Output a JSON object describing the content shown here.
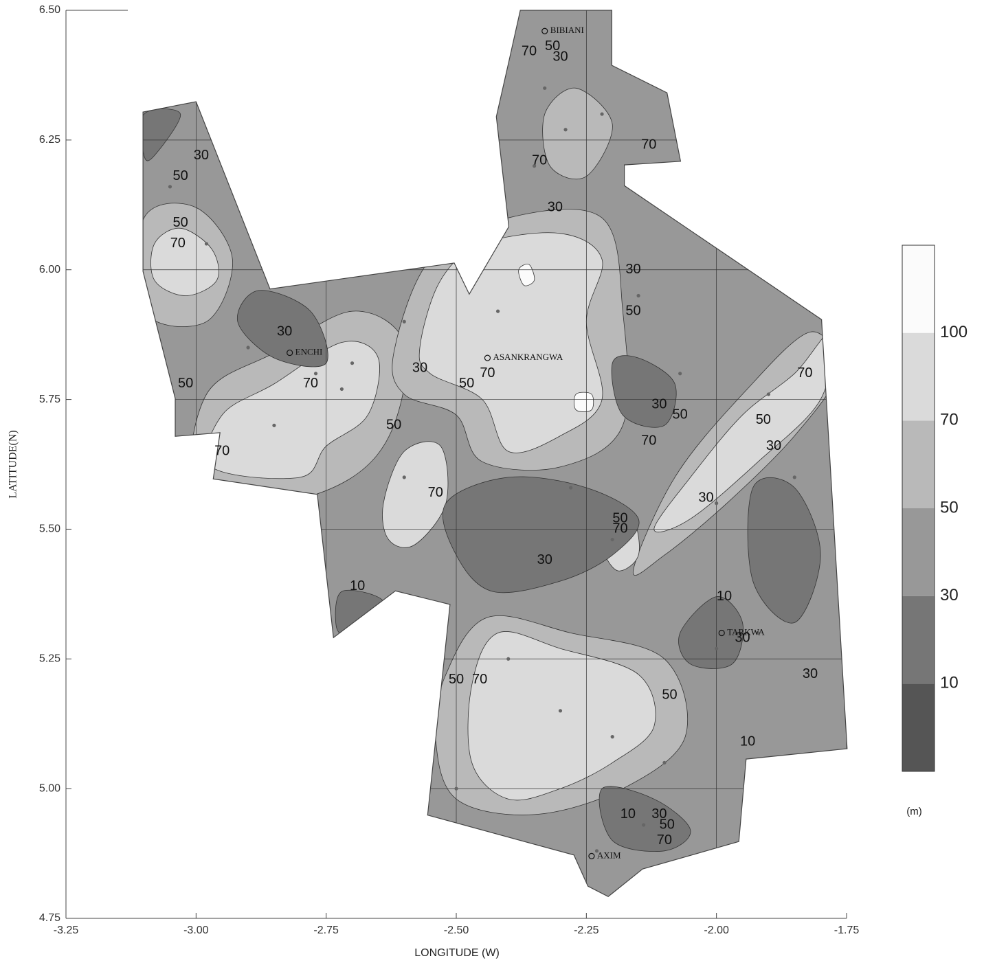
{
  "chart_data": {
    "type": "contour",
    "xlabel": "LONGITUDE (W)",
    "ylabel": "LATITUDE(N)",
    "xlim": [
      -3.25,
      -1.75
    ],
    "ylim": [
      4.75,
      6.5
    ],
    "xticks": [
      -3.25,
      {
        "value": -3,
        "label": "-3.00"
      },
      -2.75,
      {
        "value": -2.5,
        "label": "-2.50"
      },
      -2.25,
      {
        "value": -2,
        "label": "-2.00"
      },
      -1.75
    ],
    "yticks": [
      4.75,
      {
        "value": 5,
        "label": "5.00"
      },
      5.25,
      {
        "value": 5.5,
        "label": "5.50"
      },
      5.75,
      {
        "value": 6,
        "label": "6.00"
      },
      6.25,
      {
        "value": 6.5,
        "label": "6.50"
      }
    ],
    "grid": true,
    "colorbar": {
      "levels": [
        10,
        30,
        50,
        70,
        100
      ],
      "colors": [
        "#555555",
        "#767676",
        "#989898",
        "#b9b9b9",
        "#dadada",
        "#fbfbfb"
      ],
      "label": "(m)"
    },
    "base_level": 30,
    "boundary": [
      [
        -3.102,
        6.304
      ],
      [
        -3.0,
        6.324
      ],
      [
        -2.858,
        5.963
      ],
      [
        -2.504,
        6.013
      ],
      [
        -2.475,
        5.953
      ],
      [
        -2.399,
        6.083
      ],
      [
        -2.423,
        6.295
      ],
      [
        -2.399,
        6.401
      ],
      [
        -2.377,
        6.5
      ],
      [
        -2.201,
        6.5
      ],
      [
        -2.201,
        6.394
      ],
      [
        -2.095,
        6.341
      ],
      [
        -2.069,
        6.209
      ],
      [
        -2.177,
        6.202
      ],
      [
        -2.177,
        6.162
      ],
      [
        -1.798,
        5.904
      ],
      [
        -1.749,
        5.077
      ],
      [
        -1.943,
        5.057
      ],
      [
        -1.957,
        4.898
      ],
      [
        -2.142,
        4.845
      ],
      [
        -2.208,
        4.792
      ],
      [
        -2.247,
        4.812
      ],
      [
        -2.274,
        4.872
      ],
      [
        -2.555,
        4.949
      ],
      [
        -2.512,
        5.355
      ],
      [
        -2.617,
        5.381
      ],
      [
        -2.736,
        5.291
      ],
      [
        -2.767,
        5.567
      ],
      [
        -2.967,
        5.597
      ],
      [
        -2.954,
        5.686
      ],
      [
        -3.04,
        5.679
      ],
      [
        -3.04,
        5.752
      ],
      [
        -3.102,
        5.997
      ]
    ],
    "regions": [
      {
        "level": 50,
        "points": [
          [
            -3.0,
            5.58
          ],
          [
            -2.98,
            5.76
          ],
          [
            -2.85,
            5.84
          ],
          [
            -2.7,
            5.92
          ],
          [
            -2.6,
            5.86
          ],
          [
            -2.62,
            5.7
          ],
          [
            -2.7,
            5.6
          ],
          [
            -2.85,
            5.55
          ]
        ]
      },
      {
        "level": 50,
        "points": [
          [
            -2.62,
            5.84
          ],
          [
            -2.55,
            6.02
          ],
          [
            -2.4,
            6.1
          ],
          [
            -2.22,
            6.1
          ],
          [
            -2.18,
            5.92
          ],
          [
            -2.18,
            5.7
          ],
          [
            -2.3,
            5.62
          ],
          [
            -2.45,
            5.63
          ],
          [
            -2.5,
            5.72
          ],
          [
            -2.6,
            5.76
          ]
        ]
      },
      {
        "level": 50,
        "points": [
          [
            -2.52,
            5.22
          ],
          [
            -2.44,
            5.33
          ],
          [
            -2.28,
            5.3
          ],
          [
            -2.1,
            5.25
          ],
          [
            -2.06,
            5.1
          ],
          [
            -2.18,
            5.0
          ],
          [
            -2.35,
            4.95
          ],
          [
            -2.5,
            4.98
          ],
          [
            -2.54,
            5.1
          ]
        ]
      },
      {
        "level": 50,
        "points": [
          [
            -2.16,
            5.42
          ],
          [
            -2.08,
            5.6
          ],
          [
            -1.95,
            5.76
          ],
          [
            -1.82,
            5.88
          ],
          [
            -1.77,
            5.8
          ],
          [
            -1.85,
            5.68
          ],
          [
            -1.98,
            5.55
          ],
          [
            -2.1,
            5.45
          ]
        ]
      },
      {
        "level": 50,
        "points": [
          [
            -3.1,
            6.1
          ],
          [
            -3.0,
            6.12
          ],
          [
            -2.93,
            6.02
          ],
          [
            -2.98,
            5.9
          ],
          [
            -3.1,
            5.92
          ]
        ]
      },
      {
        "level": 50,
        "points": [
          [
            -2.33,
            6.3
          ],
          [
            -2.27,
            6.35
          ],
          [
            -2.2,
            6.28
          ],
          [
            -2.25,
            6.18
          ],
          [
            -2.32,
            6.2
          ]
        ]
      },
      {
        "level": 70,
        "points": [
          [
            -2.97,
            5.62
          ],
          [
            -2.95,
            5.72
          ],
          [
            -2.85,
            5.78
          ],
          [
            -2.72,
            5.86
          ],
          [
            -2.65,
            5.83
          ],
          [
            -2.67,
            5.72
          ],
          [
            -2.75,
            5.66
          ],
          [
            -2.8,
            5.6
          ]
        ]
      },
      {
        "level": 70,
        "points": [
          [
            -2.57,
            5.85
          ],
          [
            -2.53,
            5.98
          ],
          [
            -2.45,
            6.05
          ],
          [
            -2.3,
            6.07
          ],
          [
            -2.22,
            6.02
          ],
          [
            -2.25,
            5.9
          ],
          [
            -2.22,
            5.75
          ],
          [
            -2.3,
            5.68
          ],
          [
            -2.4,
            5.65
          ],
          [
            -2.45,
            5.75
          ],
          [
            -2.55,
            5.8
          ]
        ]
      },
      {
        "level": 70,
        "points": [
          [
            -2.47,
            5.2
          ],
          [
            -2.42,
            5.3
          ],
          [
            -2.3,
            5.27
          ],
          [
            -2.15,
            5.22
          ],
          [
            -2.12,
            5.12
          ],
          [
            -2.2,
            5.05
          ],
          [
            -2.3,
            5.0
          ],
          [
            -2.4,
            4.98
          ],
          [
            -2.47,
            5.05
          ]
        ]
      },
      {
        "level": 70,
        "points": [
          [
            -2.64,
            5.55
          ],
          [
            -2.6,
            5.65
          ],
          [
            -2.53,
            5.66
          ],
          [
            -2.52,
            5.55
          ],
          [
            -2.58,
            5.47
          ],
          [
            -2.63,
            5.48
          ]
        ]
      },
      {
        "level": 70,
        "points": [
          [
            -2.12,
            5.5
          ],
          [
            -2.05,
            5.6
          ],
          [
            -1.95,
            5.72
          ],
          [
            -1.85,
            5.8
          ],
          [
            -1.78,
            5.88
          ],
          [
            -1.8,
            5.75
          ],
          [
            -1.92,
            5.63
          ],
          [
            -2.05,
            5.52
          ]
        ]
      },
      {
        "level": 70,
        "points": [
          [
            -3.08,
            6.05
          ],
          [
            -3.03,
            6.08
          ],
          [
            -2.97,
            6.04
          ],
          [
            -2.96,
            5.98
          ],
          [
            -3.02,
            5.95
          ],
          [
            -3.08,
            5.98
          ]
        ]
      },
      {
        "level": 70,
        "points": [
          [
            -2.2,
            5.53
          ],
          [
            -2.16,
            5.52
          ],
          [
            -2.15,
            5.45
          ],
          [
            -2.19,
            5.42
          ],
          [
            -2.22,
            5.47
          ]
        ]
      },
      {
        "level": 100,
        "points": [
          [
            -2.38,
            6.0
          ],
          [
            -2.36,
            6.01
          ],
          [
            -2.35,
            5.98
          ],
          [
            -2.37,
            5.97
          ]
        ]
      },
      {
        "level": 100,
        "points": [
          [
            -2.27,
            5.76
          ],
          [
            -2.24,
            5.76
          ],
          [
            -2.24,
            5.73
          ],
          [
            -2.27,
            5.73
          ]
        ]
      },
      {
        "level": 10,
        "points": [
          [
            -2.52,
            5.55
          ],
          [
            -2.4,
            5.6
          ],
          [
            -2.25,
            5.58
          ],
          [
            -2.15,
            5.52
          ],
          [
            -2.2,
            5.45
          ],
          [
            -2.3,
            5.4
          ],
          [
            -2.43,
            5.38
          ],
          [
            -2.5,
            5.45
          ]
        ]
      },
      {
        "level": 10,
        "points": [
          [
            -2.2,
            5.82
          ],
          [
            -2.15,
            5.83
          ],
          [
            -2.08,
            5.78
          ],
          [
            -2.1,
            5.7
          ],
          [
            -2.18,
            5.72
          ]
        ]
      },
      {
        "level": 10,
        "points": [
          [
            -2.07,
            5.3
          ],
          [
            -2.0,
            5.37
          ],
          [
            -1.95,
            5.32
          ],
          [
            -1.97,
            5.24
          ],
          [
            -2.05,
            5.24
          ]
        ]
      },
      {
        "level": 10,
        "points": [
          [
            -2.88,
            5.96
          ],
          [
            -2.78,
            5.92
          ],
          [
            -2.75,
            5.82
          ],
          [
            -2.85,
            5.83
          ],
          [
            -2.92,
            5.9
          ]
        ]
      },
      {
        "level": 10,
        "points": [
          [
            -2.22,
            5.0
          ],
          [
            -2.12,
            4.98
          ],
          [
            -2.05,
            4.92
          ],
          [
            -2.1,
            4.88
          ],
          [
            -2.2,
            4.9
          ]
        ]
      },
      {
        "level": 10,
        "points": [
          [
            -1.93,
            5.58
          ],
          [
            -1.85,
            5.58
          ],
          [
            -1.8,
            5.45
          ],
          [
            -1.85,
            5.32
          ],
          [
            -1.93,
            5.4
          ]
        ]
      },
      {
        "level": 10,
        "points": [
          [
            -3.1,
            6.3
          ],
          [
            -3.03,
            6.3
          ],
          [
            -3.08,
            6.22
          ],
          [
            -3.1,
            6.22
          ]
        ]
      },
      {
        "level": 10,
        "points": [
          [
            -2.72,
            5.38
          ],
          [
            -2.64,
            5.36
          ],
          [
            -2.7,
            5.3
          ],
          [
            -2.73,
            5.31
          ]
        ]
      }
    ],
    "samples": [
      [
        -2.33,
        6.35
      ],
      [
        -2.29,
        6.27
      ],
      [
        -2.22,
        6.3
      ],
      [
        -2.35,
        6.2
      ],
      [
        -3.05,
        6.16
      ],
      [
        -2.98,
        6.05
      ],
      [
        -2.9,
        5.85
      ],
      [
        -2.77,
        5.8
      ],
      [
        -2.72,
        5.77
      ],
      [
        -2.7,
        5.82
      ],
      [
        -2.6,
        5.9
      ],
      [
        -2.42,
        5.92
      ],
      [
        -2.15,
        5.95
      ],
      [
        -2.07,
        5.8
      ],
      [
        -1.9,
        5.76
      ],
      [
        -1.85,
        5.6
      ],
      [
        -2.0,
        5.55
      ],
      [
        -2.28,
        5.58
      ],
      [
        -2.2,
        5.48
      ],
      [
        -2.6,
        5.6
      ],
      [
        -2.4,
        5.25
      ],
      [
        -2.3,
        5.15
      ],
      [
        -2.2,
        5.1
      ],
      [
        -2.1,
        5.05
      ],
      [
        -2.0,
        5.27
      ],
      [
        -1.92,
        5.3
      ],
      [
        -2.5,
        5.0
      ],
      [
        -2.23,
        4.88
      ],
      [
        -2.14,
        4.93
      ],
      [
        -2.85,
        5.7
      ]
    ],
    "contour_labels": [
      {
        "level": 70,
        "x": -2.36,
        "y": 6.42
      },
      {
        "level": 50,
        "x": -2.315,
        "y": 6.43
      },
      {
        "level": 30,
        "x": -2.3,
        "y": 6.41
      },
      {
        "level": 70,
        "x": -2.13,
        "y": 6.24
      },
      {
        "level": 70,
        "x": -2.34,
        "y": 6.21
      },
      {
        "level": 30,
        "x": -2.31,
        "y": 6.12
      },
      {
        "level": 30,
        "x": -2.99,
        "y": 6.22
      },
      {
        "level": 50,
        "x": -3.03,
        "y": 6.18
      },
      {
        "level": 50,
        "x": -3.03,
        "y": 6.09
      },
      {
        "level": 70,
        "x": -3.035,
        "y": 6.05
      },
      {
        "level": 30,
        "x": -2.83,
        "y": 5.88
      },
      {
        "level": 30,
        "x": -2.57,
        "y": 5.81
      },
      {
        "level": 70,
        "x": -2.78,
        "y": 5.78
      },
      {
        "level": 50,
        "x": -3.02,
        "y": 5.78
      },
      {
        "level": 70,
        "x": -2.95,
        "y": 5.65
      },
      {
        "level": 50,
        "x": -2.62,
        "y": 5.7
      },
      {
        "level": 50,
        "x": -2.48,
        "y": 5.78
      },
      {
        "level": 70,
        "x": -2.44,
        "y": 5.8
      },
      {
        "level": 70,
        "x": -2.54,
        "y": 5.57
      },
      {
        "level": 30,
        "x": -2.16,
        "y": 6.0
      },
      {
        "level": 50,
        "x": -2.16,
        "y": 5.92
      },
      {
        "level": 30,
        "x": -2.11,
        "y": 5.74
      },
      {
        "level": 50,
        "x": -2.07,
        "y": 5.72
      },
      {
        "level": 70,
        "x": -2.13,
        "y": 5.67
      },
      {
        "level": 70,
        "x": -1.83,
        "y": 5.8
      },
      {
        "level": 50,
        "x": -1.91,
        "y": 5.71
      },
      {
        "level": 30,
        "x": -1.89,
        "y": 5.66
      },
      {
        "level": 30,
        "x": -2.02,
        "y": 5.56
      },
      {
        "level": 50,
        "x": -2.185,
        "y": 5.52
      },
      {
        "level": 70,
        "x": -2.185,
        "y": 5.5
      },
      {
        "level": 30,
        "x": -2.33,
        "y": 5.44
      },
      {
        "level": 10,
        "x": -2.69,
        "y": 5.39
      },
      {
        "level": 10,
        "x": -1.985,
        "y": 5.37
      },
      {
        "level": 30,
        "x": -1.95,
        "y": 5.29
      },
      {
        "level": 30,
        "x": -1.82,
        "y": 5.22
      },
      {
        "level": 50,
        "x": -2.5,
        "y": 5.21
      },
      {
        "level": 70,
        "x": -2.455,
        "y": 5.21
      },
      {
        "level": 50,
        "x": -2.09,
        "y": 5.18
      },
      {
        "level": 10,
        "x": -1.94,
        "y": 5.09
      },
      {
        "level": 10,
        "x": -2.17,
        "y": 4.95
      },
      {
        "level": 30,
        "x": -2.11,
        "y": 4.95
      },
      {
        "level": 50,
        "x": -2.095,
        "y": 4.93
      },
      {
        "level": 70,
        "x": -2.1,
        "y": 4.9
      }
    ],
    "places": [
      {
        "name": "BIBIANI",
        "x": -2.33,
        "y": 6.46
      },
      {
        "name": "ENCHI",
        "x": -2.82,
        "y": 5.84
      },
      {
        "name": "ASANKRANGWA",
        "x": -2.44,
        "y": 5.83
      },
      {
        "name": "TARKWA",
        "x": -1.99,
        "y": 5.3
      },
      {
        "name": "AXIM",
        "x": -2.24,
        "y": 4.87
      }
    ]
  }
}
